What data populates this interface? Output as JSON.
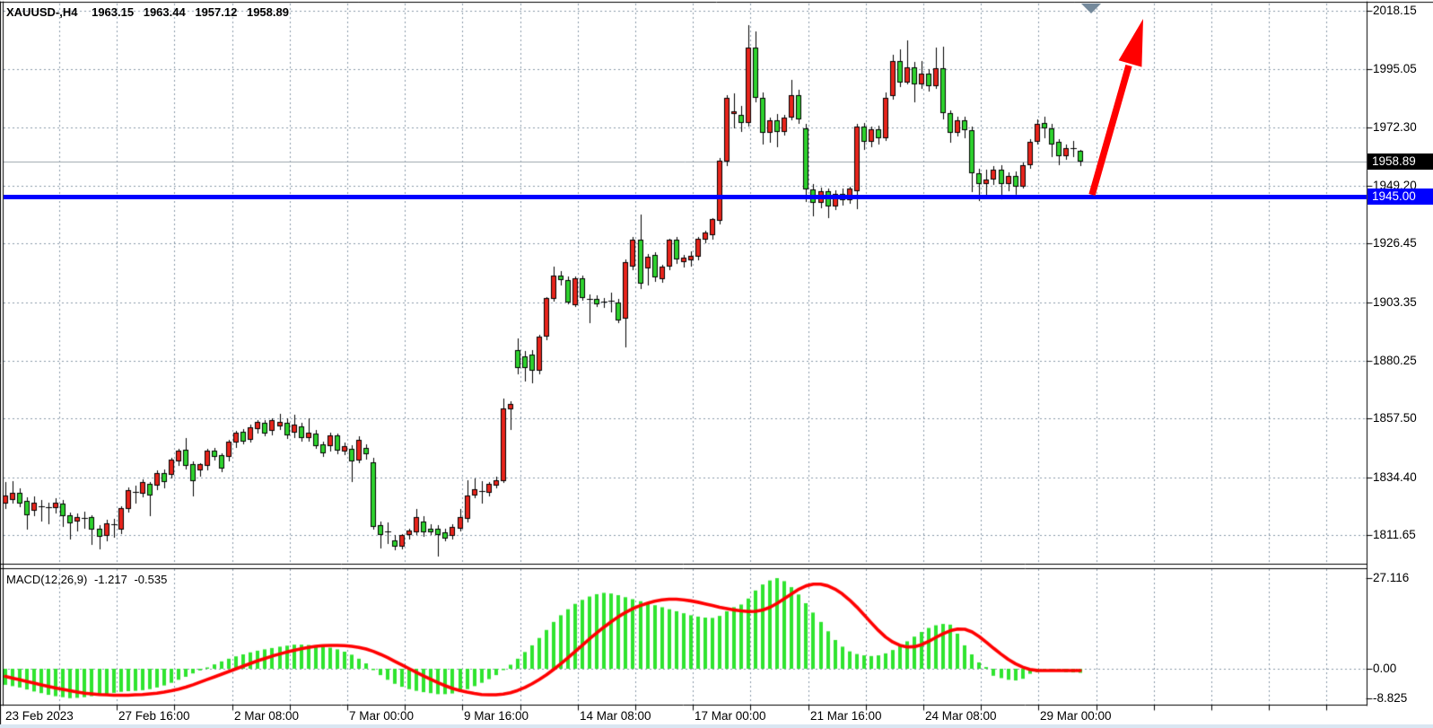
{
  "header": {
    "symbol_timeframe": "XAUUSD-,H4",
    "open": "1963.15",
    "high": "1963.44",
    "low": "1957.12",
    "close": "1958.89"
  },
  "macd_panel": {
    "label": "MACD(12,26,9)",
    "macd_value": "-1.217",
    "signal_value": "-0.535"
  },
  "axis": {
    "current_price_label": "1958.89",
    "support_price_label": "1945.00",
    "macd_scale_labels": [
      "27.116",
      "0.00",
      "-8.825"
    ]
  },
  "colors": {
    "background": "#ffffff",
    "grid": "#8798a9",
    "border": "#000000",
    "bull": "#e8241c",
    "bear": "#2ed22e",
    "wick": "#000000",
    "current_price_line": "#9aa4ac",
    "macd_hist": "#2fe42f",
    "macd_signal": "#ff0000",
    "support_line": "#0000ff",
    "arrow": "#ff0000",
    "badge_current_bg": "#000000",
    "badge_support_bg": "#0000ff",
    "shift_marker": "#74899b",
    "bottom_strip": "#d9e6f2"
  },
  "chart_data": {
    "type": "candlestick",
    "symbol": "XAUUSD-",
    "timeframe": "H4",
    "indicator": "MACD(12,26,9)",
    "last_bar": {
      "open": 1963.15,
      "high": 1963.44,
      "low": 1957.12,
      "close": 1958.89
    },
    "current_price": 1958.89,
    "support_line_price": 1945.0,
    "price_gridlines": [
      2018.15,
      1995.05,
      1972.3,
      1949.2,
      1926.45,
      1903.35,
      1880.25,
      1857.5,
      1834.4,
      1811.65
    ],
    "time_labels": [
      "23 Feb 2023",
      "27 Feb 16:00",
      "2 Mar 08:00",
      "7 Mar 00:00",
      "9 Mar 16:00",
      "14 Mar 08:00",
      "17 Mar 00:00",
      "21 Mar 16:00",
      "24 Mar 08:00",
      "29 Mar 00:00"
    ],
    "candles": [
      [
        1824.0,
        1832.6,
        1822.0,
        1827.3
      ],
      [
        1825.6,
        1833.0,
        1824.0,
        1828.4
      ],
      [
        1828.4,
        1830.0,
        1822.5,
        1824.2
      ],
      [
        1825.2,
        1826.5,
        1813.6,
        1819.6
      ],
      [
        1821.3,
        1827.0,
        1819.0,
        1824.5
      ],
      [
        1822.4,
        1825.5,
        1816.8,
        1822.8
      ],
      [
        1822.0,
        1824.5,
        1816.0,
        1822.6
      ],
      [
        1822.4,
        1826.0,
        1820.0,
        1824.5
      ],
      [
        1824.2,
        1825.5,
        1815.0,
        1819.2
      ],
      [
        1819.6,
        1820.5,
        1810.0,
        1816.1
      ],
      [
        1816.8,
        1820.0,
        1813.0,
        1818.8
      ],
      [
        1818.5,
        1821.0,
        1814.0,
        1818.0
      ],
      [
        1818.8,
        1819.5,
        1807.6,
        1813.6
      ],
      [
        1814.3,
        1815.5,
        1805.9,
        1810.8
      ],
      [
        1811.2,
        1817.5,
        1809.0,
        1816.1
      ],
      [
        1816.0,
        1818.0,
        1810.5,
        1815.5
      ],
      [
        1813.6,
        1823.0,
        1812.0,
        1822.4
      ],
      [
        1822.0,
        1830.5,
        1820.5,
        1829.4
      ],
      [
        1828.5,
        1831.0,
        1824.0,
        1828.0
      ],
      [
        1828.0,
        1833.5,
        1826.5,
        1832.6
      ],
      [
        1831.9,
        1832.5,
        1819.2,
        1827.3
      ],
      [
        1831.2,
        1837.0,
        1829.5,
        1836.0
      ],
      [
        1836.0,
        1837.5,
        1830.0,
        1832.6
      ],
      [
        1835.3,
        1842.0,
        1834.0,
        1841.2
      ],
      [
        1840.5,
        1845.5,
        1839.0,
        1844.8
      ],
      [
        1845.1,
        1849.7,
        1837.5,
        1838.8
      ],
      [
        1839.5,
        1840.5,
        1827.0,
        1832.8
      ],
      [
        1837.1,
        1840.0,
        1834.5,
        1839.5
      ],
      [
        1838.8,
        1845.5,
        1837.0,
        1844.8
      ],
      [
        1844.8,
        1846.0,
        1841.0,
        1842.3
      ],
      [
        1843.0,
        1844.0,
        1836.5,
        1837.8
      ],
      [
        1842.3,
        1849.0,
        1840.5,
        1848.3
      ],
      [
        1847.9,
        1852.5,
        1846.0,
        1851.8
      ],
      [
        1852.2,
        1853.5,
        1847.5,
        1848.6
      ],
      [
        1849.0,
        1855.0,
        1848.0,
        1854.0
      ],
      [
        1853.3,
        1857.0,
        1851.5,
        1856.1
      ],
      [
        1855.7,
        1857.0,
        1850.5,
        1851.5
      ],
      [
        1852.5,
        1857.5,
        1851.0,
        1856.8
      ],
      [
        1854.3,
        1859.5,
        1853.0,
        1856.1
      ],
      [
        1855.7,
        1857.5,
        1849.5,
        1850.8
      ],
      [
        1851.8,
        1859.0,
        1850.0,
        1855.0
      ],
      [
        1854.3,
        1856.0,
        1848.5,
        1849.7
      ],
      [
        1849.7,
        1857.5,
        1848.5,
        1851.8
      ],
      [
        1851.5,
        1853.0,
        1845.5,
        1846.5
      ],
      [
        1847.2,
        1848.5,
        1842.5,
        1843.7
      ],
      [
        1846.5,
        1852.0,
        1844.5,
        1850.8
      ],
      [
        1850.8,
        1851.5,
        1843.5,
        1844.8
      ],
      [
        1844.4,
        1848.0,
        1843.0,
        1846.5
      ],
      [
        1845.5,
        1847.0,
        1832.6,
        1840.5
      ],
      [
        1841.0,
        1850.5,
        1840.0,
        1849.0
      ],
      [
        1846.0,
        1847.5,
        1841.5,
        1843.5
      ],
      [
        1840.2,
        1842.0,
        1813.6,
        1815.0
      ],
      [
        1815.7,
        1817.0,
        1806.5,
        1811.5
      ],
      [
        1813.0,
        1816.5,
        1808.0,
        1812.5
      ],
      [
        1809.7,
        1811.5,
        1805.5,
        1807.2
      ],
      [
        1807.2,
        1812.0,
        1806.0,
        1811.5
      ],
      [
        1811.5,
        1814.0,
        1810.0,
        1813.3
      ],
      [
        1812.6,
        1822.0,
        1811.5,
        1818.6
      ],
      [
        1816.8,
        1819.0,
        1811.0,
        1812.6
      ],
      [
        1814.3,
        1816.0,
        1811.5,
        1812.6
      ],
      [
        1814.0,
        1815.5,
        1803.0,
        1811.5
      ],
      [
        1812.6,
        1814.0,
        1809.0,
        1810.1
      ],
      [
        1811.2,
        1816.0,
        1810.0,
        1815.0
      ],
      [
        1814.3,
        1822.0,
        1813.0,
        1818.6
      ],
      [
        1817.9,
        1833.1,
        1816.5,
        1827.1
      ],
      [
        1827.1,
        1834.0,
        1826.0,
        1829.6
      ],
      [
        1828.9,
        1833.0,
        1824.0,
        1828.9
      ],
      [
        1828.2,
        1832.5,
        1827.0,
        1831.7
      ],
      [
        1831.2,
        1834.5,
        1830.0,
        1833.3
      ],
      [
        1832.9,
        1865.5,
        1832.0,
        1861.6
      ],
      [
        1861.3,
        1864.5,
        1853.0,
        1863.4
      ],
      [
        1884.5,
        1889.1,
        1874.9,
        1877.4
      ],
      [
        1882.0,
        1884.0,
        1872.1,
        1877.4
      ],
      [
        1882.7,
        1884.5,
        1871.4,
        1876.3
      ],
      [
        1876.3,
        1890.5,
        1875.0,
        1889.8
      ],
      [
        1889.8,
        1905.5,
        1888.5,
        1905.1
      ],
      [
        1904.8,
        1917.2,
        1903.5,
        1914.0
      ],
      [
        1913.7,
        1915.5,
        1910.0,
        1911.9
      ],
      [
        1912.2,
        1913.5,
        1902.5,
        1903.4
      ],
      [
        1902.3,
        1913.5,
        1901.5,
        1912.9
      ],
      [
        1912.9,
        1914.0,
        1904.0,
        1905.1
      ],
      [
        1904.6,
        1906.5,
        1895.2,
        1904.0
      ],
      [
        1904.8,
        1906.0,
        1901.5,
        1902.7
      ],
      [
        1902.8,
        1905.0,
        1901.0,
        1903.5
      ],
      [
        1903.8,
        1907.0,
        1899.5,
        1903.6
      ],
      [
        1903.1,
        1904.5,
        1895.0,
        1896.3
      ],
      [
        1897.0,
        1920.1,
        1885.6,
        1919.1
      ],
      [
        1917.3,
        1929.0,
        1916.0,
        1928.0
      ],
      [
        1928.0,
        1937.9,
        1908.5,
        1910.5
      ],
      [
        1916.6,
        1922.5,
        1910.0,
        1921.2
      ],
      [
        1921.9,
        1923.0,
        1911.5,
        1913.0
      ],
      [
        1912.3,
        1918.0,
        1911.0,
        1917.3
      ],
      [
        1917.3,
        1928.5,
        1916.0,
        1928.0
      ],
      [
        1928.0,
        1929.0,
        1918.5,
        1920.1
      ],
      [
        1919.1,
        1922.0,
        1917.0,
        1920.8
      ],
      [
        1919.8,
        1923.5,
        1917.5,
        1921.5
      ],
      [
        1921.2,
        1929.0,
        1920.0,
        1928.3
      ],
      [
        1928.0,
        1931.5,
        1926.5,
        1930.8
      ],
      [
        1929.7,
        1936.5,
        1928.0,
        1936.1
      ],
      [
        1935.4,
        1960.0,
        1934.0,
        1959.2
      ],
      [
        1958.9,
        1985.0,
        1957.0,
        1983.8
      ],
      [
        1977.5,
        1985.5,
        1972.0,
        1978.5
      ],
      [
        1977.0,
        1980.5,
        1970.5,
        1974.0
      ],
      [
        1974.0,
        2012.5,
        1972.5,
        2003.5
      ],
      [
        2003.5,
        2010.0,
        1982.0,
        1984.0
      ],
      [
        1984.0,
        1986.0,
        1965.5,
        1970.0
      ],
      [
        1970.0,
        1976.0,
        1966.0,
        1975.0
      ],
      [
        1975.0,
        1977.5,
        1964.5,
        1970.5
      ],
      [
        1970.5,
        1977.0,
        1969.0,
        1976.0
      ],
      [
        1976.0,
        1991.0,
        1975.0,
        1985.0
      ],
      [
        1985.0,
        1987.0,
        1973.5,
        1975.5
      ],
      [
        1972.0,
        1973.5,
        1943.0,
        1947.8
      ],
      [
        1947.8,
        1950.0,
        1937.0,
        1942.5
      ],
      [
        1942.5,
        1948.5,
        1940.5,
        1947.0
      ],
      [
        1947.0,
        1948.0,
        1936.5,
        1941.0
      ],
      [
        1941.0,
        1947.5,
        1939.5,
        1946.0
      ],
      [
        1946.0,
        1948.0,
        1941.5,
        1943.5
      ],
      [
        1943.5,
        1949.0,
        1942.0,
        1948.0
      ],
      [
        1947.0,
        1973.5,
        1940.0,
        1972.7
      ],
      [
        1972.7,
        1974.0,
        1963.5,
        1966.5
      ],
      [
        1966.5,
        1972.5,
        1964.5,
        1971.5
      ],
      [
        1971.5,
        1973.0,
        1965.5,
        1968.0
      ],
      [
        1968.0,
        1986.0,
        1967.0,
        1984.0
      ],
      [
        1984.4,
        2001.0,
        1983.0,
        1998.3
      ],
      [
        1998.3,
        2003.0,
        1988.0,
        1990.0
      ],
      [
        1990.0,
        2006.4,
        1989.0,
        1996.0
      ],
      [
        1996.0,
        1998.0,
        1982.0,
        1989.0
      ],
      [
        1989.0,
        1998.5,
        1987.5,
        1993.5
      ],
      [
        1993.5,
        1995.0,
        1986.5,
        1988.5
      ],
      [
        1988.5,
        2003.7,
        1987.5,
        1995.6
      ],
      [
        1995.6,
        2004.0,
        1975.5,
        1977.8
      ],
      [
        1977.8,
        1979.0,
        1966.0,
        1970.0
      ],
      [
        1970.0,
        1976.5,
        1968.5,
        1975.0
      ],
      [
        1975.0,
        1976.5,
        1968.0,
        1971.0
      ],
      [
        1971.0,
        1972.5,
        1946.8,
        1954.2
      ],
      [
        1954.2,
        1956.0,
        1943.2,
        1950.0
      ],
      [
        1950.0,
        1955.5,
        1945.0,
        1951.5
      ],
      [
        1951.5,
        1957.0,
        1949.5,
        1955.5
      ],
      [
        1955.5,
        1957.5,
        1944.0,
        1950.0
      ],
      [
        1950.0,
        1954.5,
        1947.0,
        1953.0
      ],
      [
        1953.0,
        1955.0,
        1945.5,
        1949.0
      ],
      [
        1949.0,
        1958.5,
        1948.0,
        1957.5
      ],
      [
        1957.4,
        1967.5,
        1956.0,
        1966.6
      ],
      [
        1966.6,
        1975.5,
        1965.5,
        1973.7
      ],
      [
        1974.0,
        1976.5,
        1968.0,
        1972.0
      ],
      [
        1972.0,
        1973.5,
        1960.5,
        1965.6
      ],
      [
        1966.6,
        1967.5,
        1957.5,
        1960.9
      ],
      [
        1961.0,
        1965.5,
        1959.5,
        1964.0
      ],
      [
        1963.5,
        1967.0,
        1960.5,
        1964.0
      ],
      [
        1963.15,
        1963.44,
        1957.12,
        1958.89
      ]
    ],
    "macd": {
      "params": "12,26,9",
      "scale": {
        "max": 27.116,
        "zero": 0.0,
        "min": -8.825
      },
      "current": {
        "macd": -1.217,
        "signal": -0.535
      },
      "histogram": [
        -4.8,
        -5.2,
        -5.6,
        -6.2,
        -6.8,
        -7.3,
        -7.8,
        -8.2,
        -8.5,
        -8.8,
        -8.7,
        -8.5,
        -8.2,
        -7.9,
        -7.5,
        -7.2,
        -6.9,
        -6.7,
        -6.6,
        -6.4,
        -6.1,
        -5.6,
        -5.0,
        -4.2,
        -3.3,
        -2.4,
        -1.4,
        -0.5,
        0.4,
        1.3,
        2.2,
        3.0,
        3.7,
        4.3,
        4.9,
        5.4,
        5.8,
        6.2,
        6.6,
        6.9,
        7.2,
        7.2,
        7.1,
        6.9,
        6.6,
        6.3,
        5.8,
        5.1,
        4.2,
        3.0,
        1.6,
        -0.2,
        -1.9,
        -3.3,
        -4.5,
        -5.4,
        -6.1,
        -6.6,
        -7.0,
        -7.3,
        -7.6,
        -7.6,
        -7.4,
        -6.9,
        -6.1,
        -5.2,
        -4.2,
        -3.1,
        -1.9,
        -0.4,
        1.2,
        3.0,
        5.0,
        7.0,
        9.2,
        11.6,
        14.0,
        16.0,
        17.8,
        19.4,
        20.6,
        21.6,
        22.3,
        22.7,
        22.5,
        22.0,
        21.4,
        20.8,
        20.2,
        19.6,
        19.0,
        18.4,
        17.8,
        17.2,
        16.6,
        16.0,
        15.6,
        15.3,
        15.2,
        15.8,
        17.2,
        18.4,
        19.2,
        21.0,
        23.4,
        25.2,
        26.4,
        27.1,
        26.2,
        24.4,
        22.2,
        19.6,
        16.8,
        14.0,
        11.2,
        8.6,
        6.6,
        5.2,
        4.4,
        4.0,
        3.8,
        4.0,
        4.6,
        5.6,
        6.8,
        8.2,
        9.6,
        11.0,
        12.2,
        13.0,
        13.4,
        13.2,
        10.5,
        7.0,
        4.3,
        1.9,
        0.5,
        -2.1,
        -2.8,
        -3.3,
        -3.5,
        -3.0,
        -1.5,
        -1.0,
        -0.8,
        -0.7,
        -0.8,
        -1.0,
        -1.1,
        -1.217
      ],
      "signal": [
        -2.3,
        -2.8,
        -3.3,
        -3.8,
        -4.3,
        -4.8,
        -5.3,
        -5.8,
        -6.2,
        -6.6,
        -7.0,
        -7.3,
        -7.5,
        -7.7,
        -7.8,
        -7.9,
        -7.9,
        -7.9,
        -7.8,
        -7.7,
        -7.5,
        -7.3,
        -7.0,
        -6.6,
        -6.1,
        -5.5,
        -4.8,
        -4.0,
        -3.2,
        -2.4,
        -1.6,
        -0.8,
        0.0,
        0.8,
        1.6,
        2.4,
        3.1,
        3.8,
        4.4,
        5.0,
        5.5,
        6.0,
        6.4,
        6.7,
        6.9,
        7.0,
        7.0,
        6.9,
        6.7,
        6.4,
        5.9,
        5.2,
        4.3,
        3.3,
        2.2,
        1.1,
        0.0,
        -1.1,
        -2.2,
        -3.2,
        -4.2,
        -5.1,
        -5.9,
        -6.5,
        -7.0,
        -7.4,
        -7.7,
        -7.8,
        -7.8,
        -7.6,
        -7.2,
        -6.5,
        -5.6,
        -4.5,
        -3.2,
        -1.8,
        -0.2,
        1.5,
        3.3,
        5.2,
        7.1,
        9.0,
        10.8,
        12.5,
        14.1,
        15.6,
        16.9,
        18.0,
        18.9,
        19.6,
        20.2,
        20.6,
        20.8,
        20.8,
        20.6,
        20.3,
        19.9,
        19.4,
        18.9,
        18.4,
        18.0,
        17.6,
        17.3,
        17.1,
        17.2,
        17.6,
        18.4,
        19.6,
        21.0,
        22.4,
        23.8,
        24.8,
        25.3,
        25.3,
        24.8,
        23.8,
        22.4,
        20.6,
        18.5,
        16.2,
        13.8,
        11.5,
        9.5,
        8.0,
        7.0,
        6.5,
        6.6,
        7.2,
        8.2,
        9.4,
        10.5,
        11.4,
        11.9,
        11.8,
        11.0,
        9.6,
        7.9,
        6.1,
        4.4,
        2.8,
        1.5,
        0.5,
        -0.2,
        -0.5,
        -0.55,
        -0.55,
        -0.55,
        -0.55,
        -0.54,
        -0.535
      ]
    }
  }
}
